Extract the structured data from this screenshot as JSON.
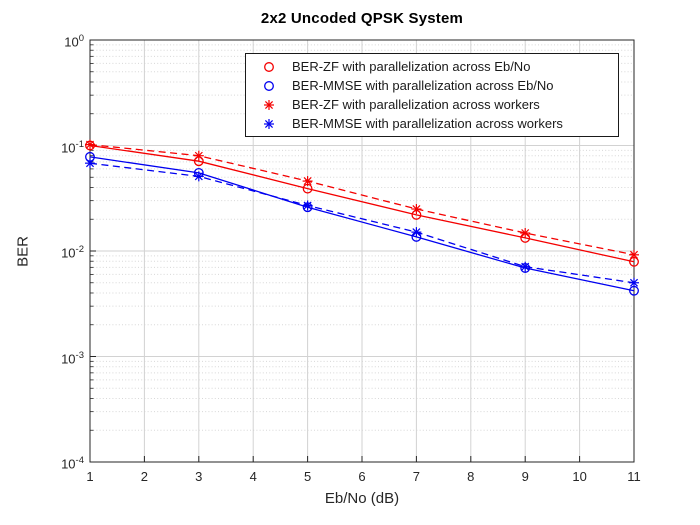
{
  "window": {
    "background": "#ffffff"
  },
  "chart_data": {
    "type": "line",
    "title": "2x2 Uncoded QPSK System",
    "xlabel": "Eb/No (dB)",
    "ylabel": "BER",
    "xlim": [
      1,
      11
    ],
    "ylim": [
      0.0001,
      1
    ],
    "yscale": "log",
    "x_ticks": [
      1,
      2,
      3,
      4,
      5,
      6,
      7,
      8,
      9,
      10,
      11
    ],
    "y_tick_exponents": [
      0,
      -1,
      -2,
      -3,
      -4
    ],
    "grid": "on",
    "minor_grid": "on (dotted, y-decades)",
    "legend_position": "upper-right-inside",
    "x": [
      1,
      3,
      5,
      7,
      9,
      11
    ],
    "series": [
      {
        "name": "BER-ZF with parallelization across Eb/No",
        "color": "#f40000",
        "marker": "circle",
        "line": "solid",
        "values": [
          0.1,
          0.071,
          0.039,
          0.022,
          0.0133,
          0.0079
        ]
      },
      {
        "name": "BER-MMSE with parallelization across Eb/No",
        "color": "#0000f0",
        "marker": "circle",
        "line": "solid",
        "values": [
          0.078,
          0.055,
          0.026,
          0.0136,
          0.0069,
          0.0042
        ]
      },
      {
        "name": "BER-ZF with parallelization across workers",
        "color": "#f40000",
        "marker": "asterisk",
        "line": "dashed",
        "values": [
          0.102,
          0.08,
          0.046,
          0.025,
          0.0148,
          0.0092
        ]
      },
      {
        "name": "BER-MMSE with parallelization across workers",
        "color": "#0000f0",
        "marker": "asterisk",
        "line": "dashed",
        "values": [
          0.068,
          0.051,
          0.027,
          0.0151,
          0.0071,
          0.005
        ]
      }
    ],
    "colors": {
      "axis": "#262626",
      "major_grid": "#d2d2d2",
      "minor_grid": "#d8d8d8",
      "tick_label": "#262626"
    }
  }
}
